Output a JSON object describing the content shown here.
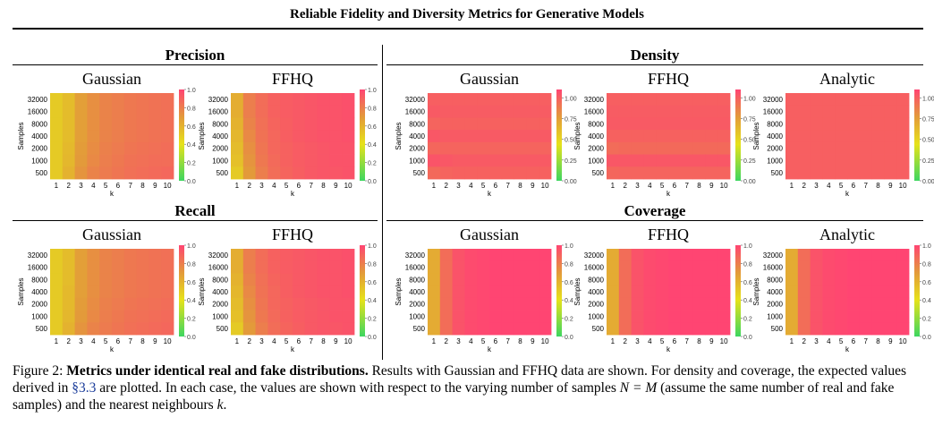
{
  "header": {
    "title": "Reliable Fidelity and Diversity Metrics for Generative Models"
  },
  "sections": {
    "precision": "Precision",
    "recall": "Recall",
    "density": "Density",
    "coverage": "Coverage"
  },
  "axes": {
    "xlabel": "k",
    "ylabel": "Samples",
    "x_ticks": [
      "1",
      "2",
      "3",
      "4",
      "5",
      "6",
      "7",
      "8",
      "9",
      "10"
    ],
    "y_ticks": [
      "32000",
      "16000",
      "8000",
      "4000",
      "2000",
      "1000",
      "500"
    ]
  },
  "colorbar_ticks_1": [
    "1.0",
    "0.8",
    "0.6",
    "0.4",
    "0.2",
    "0.0"
  ],
  "colorbar_ticks_density": [
    "1.00",
    "0.75",
    "0.50",
    "0.25",
    "0.00"
  ],
  "colors": {
    "low": "#3dd660",
    "mid": "#e6e21a",
    "orange": "#e39a3a",
    "high": "#ff4572"
  },
  "chart_data": [
    {
      "id": "precision-gaussian",
      "type": "heatmap",
      "section": "Precision",
      "title": "Gaussian",
      "xlabel": "k",
      "ylabel": "Samples",
      "vmin": 0,
      "vmax": 1,
      "x": [
        1,
        2,
        3,
        4,
        5,
        6,
        7,
        8,
        9,
        10
      ],
      "y": [
        32000,
        16000,
        8000,
        4000,
        2000,
        1000,
        500
      ],
      "values": [
        [
          0.5,
          0.56,
          0.68,
          0.74,
          0.78,
          0.8,
          0.82,
          0.83,
          0.84,
          0.85
        ],
        [
          0.5,
          0.56,
          0.68,
          0.74,
          0.78,
          0.8,
          0.82,
          0.83,
          0.84,
          0.85
        ],
        [
          0.5,
          0.56,
          0.68,
          0.74,
          0.78,
          0.8,
          0.82,
          0.83,
          0.84,
          0.85
        ],
        [
          0.5,
          0.56,
          0.68,
          0.74,
          0.78,
          0.8,
          0.82,
          0.83,
          0.84,
          0.85
        ],
        [
          0.5,
          0.57,
          0.69,
          0.75,
          0.79,
          0.81,
          0.83,
          0.84,
          0.85,
          0.86
        ],
        [
          0.5,
          0.58,
          0.7,
          0.76,
          0.8,
          0.82,
          0.84,
          0.85,
          0.86,
          0.86
        ],
        [
          0.5,
          0.6,
          0.72,
          0.78,
          0.81,
          0.83,
          0.85,
          0.86,
          0.87,
          0.88
        ]
      ]
    },
    {
      "id": "precision-ffhq",
      "type": "heatmap",
      "section": "Precision",
      "title": "FFHQ",
      "xlabel": "k",
      "ylabel": "Samples",
      "vmin": 0,
      "vmax": 1,
      "x": [
        1,
        2,
        3,
        4,
        5,
        6,
        7,
        8,
        9,
        10
      ],
      "y": [
        32000,
        16000,
        8000,
        4000,
        2000,
        1000,
        500
      ],
      "values": [
        [
          0.62,
          0.8,
          0.86,
          0.9,
          0.92,
          0.93,
          0.94,
          0.95,
          0.95,
          0.96
        ],
        [
          0.62,
          0.8,
          0.86,
          0.9,
          0.92,
          0.93,
          0.94,
          0.95,
          0.95,
          0.96
        ],
        [
          0.6,
          0.78,
          0.85,
          0.89,
          0.91,
          0.93,
          0.94,
          0.95,
          0.95,
          0.96
        ],
        [
          0.58,
          0.76,
          0.84,
          0.88,
          0.91,
          0.93,
          0.94,
          0.95,
          0.95,
          0.96
        ],
        [
          0.56,
          0.74,
          0.83,
          0.88,
          0.9,
          0.92,
          0.93,
          0.94,
          0.95,
          0.95
        ],
        [
          0.54,
          0.72,
          0.82,
          0.87,
          0.9,
          0.92,
          0.93,
          0.94,
          0.95,
          0.95
        ],
        [
          0.5,
          0.7,
          0.8,
          0.86,
          0.89,
          0.91,
          0.93,
          0.94,
          0.94,
          0.95
        ]
      ]
    },
    {
      "id": "density-gaussian",
      "type": "heatmap",
      "section": "Density",
      "title": "Gaussian",
      "xlabel": "k",
      "ylabel": "Samples",
      "vmin": 0,
      "vmax": 1.1,
      "x": [
        1,
        2,
        3,
        4,
        5,
        6,
        7,
        8,
        9,
        10
      ],
      "y": [
        32000,
        16000,
        8000,
        4000,
        2000,
        1000,
        500
      ],
      "values": [
        [
          1.0,
          1.0,
          1.0,
          1.0,
          1.0,
          1.0,
          1.0,
          1.0,
          1.0,
          1.0
        ],
        [
          1.02,
          1.01,
          1.01,
          1.01,
          1.01,
          1.01,
          1.01,
          1.01,
          1.01,
          1.01
        ],
        [
          0.98,
          0.99,
          0.99,
          0.99,
          0.99,
          0.99,
          0.99,
          0.99,
          0.99,
          0.99
        ],
        [
          1.03,
          1.02,
          1.02,
          1.02,
          1.02,
          1.02,
          1.02,
          1.02,
          1.02,
          1.02
        ],
        [
          0.97,
          0.98,
          0.98,
          0.98,
          0.98,
          0.98,
          0.98,
          0.98,
          0.98,
          0.98
        ],
        [
          1.04,
          1.03,
          1.02,
          1.02,
          1.02,
          1.02,
          1.02,
          1.02,
          1.02,
          1.02
        ],
        [
          0.96,
          0.98,
          0.99,
          0.99,
          0.99,
          0.99,
          0.99,
          0.99,
          0.99,
          0.99
        ]
      ]
    },
    {
      "id": "density-ffhq",
      "type": "heatmap",
      "section": "Density",
      "title": "FFHQ",
      "xlabel": "k",
      "ylabel": "Samples",
      "vmin": 0,
      "vmax": 1.1,
      "x": [
        1,
        2,
        3,
        4,
        5,
        6,
        7,
        8,
        9,
        10
      ],
      "y": [
        32000,
        16000,
        8000,
        4000,
        2000,
        1000,
        500
      ],
      "values": [
        [
          1.0,
          1.0,
          1.0,
          1.0,
          1.0,
          1.0,
          1.0,
          1.0,
          1.0,
          1.0
        ],
        [
          1.01,
          1.01,
          1.01,
          1.01,
          1.01,
          1.01,
          1.01,
          1.01,
          1.01,
          1.01
        ],
        [
          1.02,
          1.02,
          1.02,
          1.02,
          1.02,
          1.02,
          1.02,
          1.02,
          1.02,
          1.02
        ],
        [
          0.99,
          0.99,
          0.99,
          0.99,
          0.99,
          0.99,
          0.99,
          0.99,
          0.99,
          0.99
        ],
        [
          0.95,
          0.96,
          0.96,
          0.96,
          0.96,
          0.96,
          0.96,
          0.96,
          0.96,
          0.96
        ],
        [
          1.03,
          1.03,
          1.03,
          1.03,
          1.03,
          1.03,
          1.03,
          1.03,
          1.03,
          1.03
        ],
        [
          0.97,
          0.98,
          0.98,
          0.98,
          0.98,
          0.98,
          0.98,
          0.98,
          0.98,
          0.98
        ]
      ]
    },
    {
      "id": "density-analytic",
      "type": "heatmap",
      "section": "Density",
      "title": "Analytic",
      "xlabel": "k",
      "ylabel": "Samples",
      "vmin": 0,
      "vmax": 1.1,
      "x": [
        1,
        2,
        3,
        4,
        5,
        6,
        7,
        8,
        9,
        10
      ],
      "y": [
        32000,
        16000,
        8000,
        4000,
        2000,
        1000,
        500
      ],
      "values": [
        [
          1.0,
          1.0,
          1.0,
          1.0,
          1.0,
          1.0,
          1.0,
          1.0,
          1.0,
          1.0
        ],
        [
          1.0,
          1.0,
          1.0,
          1.0,
          1.0,
          1.0,
          1.0,
          1.0,
          1.0,
          1.0
        ],
        [
          1.0,
          1.0,
          1.0,
          1.0,
          1.0,
          1.0,
          1.0,
          1.0,
          1.0,
          1.0
        ],
        [
          1.0,
          1.0,
          1.0,
          1.0,
          1.0,
          1.0,
          1.0,
          1.0,
          1.0,
          1.0
        ],
        [
          1.0,
          1.0,
          1.0,
          1.0,
          1.0,
          1.0,
          1.0,
          1.0,
          1.0,
          1.0
        ],
        [
          1.0,
          1.0,
          1.0,
          1.0,
          1.0,
          1.0,
          1.0,
          1.0,
          1.0,
          1.0
        ],
        [
          1.0,
          1.0,
          1.0,
          1.0,
          1.0,
          1.0,
          1.0,
          1.0,
          1.0,
          1.0
        ]
      ]
    },
    {
      "id": "recall-gaussian",
      "type": "heatmap",
      "section": "Recall",
      "title": "Gaussian",
      "xlabel": "k",
      "ylabel": "Samples",
      "vmin": 0,
      "vmax": 1,
      "x": [
        1,
        2,
        3,
        4,
        5,
        6,
        7,
        8,
        9,
        10
      ],
      "y": [
        32000,
        16000,
        8000,
        4000,
        2000,
        1000,
        500
      ],
      "values": [
        [
          0.5,
          0.56,
          0.68,
          0.74,
          0.78,
          0.8,
          0.82,
          0.83,
          0.84,
          0.85
        ],
        [
          0.5,
          0.56,
          0.68,
          0.74,
          0.78,
          0.8,
          0.82,
          0.83,
          0.84,
          0.85
        ],
        [
          0.5,
          0.56,
          0.68,
          0.74,
          0.78,
          0.8,
          0.82,
          0.83,
          0.84,
          0.85
        ],
        [
          0.5,
          0.57,
          0.68,
          0.74,
          0.78,
          0.8,
          0.82,
          0.83,
          0.84,
          0.85
        ],
        [
          0.5,
          0.57,
          0.69,
          0.75,
          0.79,
          0.81,
          0.83,
          0.84,
          0.85,
          0.86
        ],
        [
          0.5,
          0.58,
          0.7,
          0.76,
          0.8,
          0.82,
          0.84,
          0.85,
          0.86,
          0.87
        ],
        [
          0.5,
          0.6,
          0.72,
          0.78,
          0.81,
          0.83,
          0.85,
          0.86,
          0.87,
          0.88
        ]
      ]
    },
    {
      "id": "recall-ffhq",
      "type": "heatmap",
      "section": "Recall",
      "title": "FFHQ",
      "xlabel": "k",
      "ylabel": "Samples",
      "vmin": 0,
      "vmax": 1,
      "x": [
        1,
        2,
        3,
        4,
        5,
        6,
        7,
        8,
        9,
        10
      ],
      "y": [
        32000,
        16000,
        8000,
        4000,
        2000,
        1000,
        500
      ],
      "values": [
        [
          0.62,
          0.8,
          0.86,
          0.9,
          0.92,
          0.93,
          0.94,
          0.95,
          0.95,
          0.96
        ],
        [
          0.62,
          0.8,
          0.86,
          0.9,
          0.92,
          0.93,
          0.94,
          0.95,
          0.95,
          0.96
        ],
        [
          0.6,
          0.78,
          0.85,
          0.89,
          0.91,
          0.93,
          0.94,
          0.95,
          0.95,
          0.96
        ],
        [
          0.58,
          0.76,
          0.84,
          0.88,
          0.91,
          0.93,
          0.94,
          0.95,
          0.95,
          0.96
        ],
        [
          0.56,
          0.74,
          0.83,
          0.88,
          0.9,
          0.92,
          0.93,
          0.94,
          0.95,
          0.95
        ],
        [
          0.54,
          0.72,
          0.82,
          0.87,
          0.9,
          0.92,
          0.93,
          0.94,
          0.95,
          0.95
        ],
        [
          0.5,
          0.7,
          0.8,
          0.86,
          0.89,
          0.91,
          0.93,
          0.94,
          0.94,
          0.95
        ]
      ]
    },
    {
      "id": "coverage-gaussian",
      "type": "heatmap",
      "section": "Coverage",
      "title": "Gaussian",
      "xlabel": "k",
      "ylabel": "Samples",
      "vmin": 0,
      "vmax": 1,
      "x": [
        1,
        2,
        3,
        4,
        5,
        6,
        7,
        8,
        9,
        10
      ],
      "y": [
        32000,
        16000,
        8000,
        4000,
        2000,
        1000,
        500
      ],
      "values": [
        [
          0.63,
          0.86,
          0.95,
          0.98,
          0.99,
          1.0,
          1.0,
          1.0,
          1.0,
          1.0
        ],
        [
          0.63,
          0.86,
          0.95,
          0.98,
          0.99,
          1.0,
          1.0,
          1.0,
          1.0,
          1.0
        ],
        [
          0.63,
          0.86,
          0.95,
          0.98,
          0.99,
          1.0,
          1.0,
          1.0,
          1.0,
          1.0
        ],
        [
          0.63,
          0.86,
          0.95,
          0.98,
          0.99,
          1.0,
          1.0,
          1.0,
          1.0,
          1.0
        ],
        [
          0.63,
          0.86,
          0.95,
          0.98,
          0.99,
          1.0,
          1.0,
          1.0,
          1.0,
          1.0
        ],
        [
          0.63,
          0.86,
          0.95,
          0.98,
          0.99,
          1.0,
          1.0,
          1.0,
          1.0,
          1.0
        ],
        [
          0.63,
          0.86,
          0.95,
          0.98,
          0.99,
          1.0,
          1.0,
          1.0,
          1.0,
          1.0
        ]
      ]
    },
    {
      "id": "coverage-ffhq",
      "type": "heatmap",
      "section": "Coverage",
      "title": "FFHQ",
      "xlabel": "k",
      "ylabel": "Samples",
      "vmin": 0,
      "vmax": 1,
      "x": [
        1,
        2,
        3,
        4,
        5,
        6,
        7,
        8,
        9,
        10
      ],
      "y": [
        32000,
        16000,
        8000,
        4000,
        2000,
        1000,
        500
      ],
      "values": [
        [
          0.63,
          0.86,
          0.95,
          0.98,
          0.99,
          1.0,
          1.0,
          1.0,
          1.0,
          1.0
        ],
        [
          0.63,
          0.86,
          0.95,
          0.98,
          0.99,
          1.0,
          1.0,
          1.0,
          1.0,
          1.0
        ],
        [
          0.63,
          0.86,
          0.95,
          0.98,
          0.99,
          1.0,
          1.0,
          1.0,
          1.0,
          1.0
        ],
        [
          0.63,
          0.86,
          0.95,
          0.98,
          0.99,
          1.0,
          1.0,
          1.0,
          1.0,
          1.0
        ],
        [
          0.63,
          0.86,
          0.95,
          0.98,
          0.99,
          1.0,
          1.0,
          1.0,
          1.0,
          1.0
        ],
        [
          0.63,
          0.86,
          0.95,
          0.98,
          0.99,
          1.0,
          1.0,
          1.0,
          1.0,
          1.0
        ],
        [
          0.63,
          0.86,
          0.95,
          0.98,
          0.99,
          1.0,
          1.0,
          1.0,
          1.0,
          1.0
        ]
      ]
    },
    {
      "id": "coverage-analytic",
      "type": "heatmap",
      "section": "Coverage",
      "title": "Analytic",
      "xlabel": "k",
      "ylabel": "Samples",
      "vmin": 0,
      "vmax": 1,
      "x": [
        1,
        2,
        3,
        4,
        5,
        6,
        7,
        8,
        9,
        10
      ],
      "y": [
        32000,
        16000,
        8000,
        4000,
        2000,
        1000,
        500
      ],
      "values": [
        [
          0.63,
          0.86,
          0.95,
          0.98,
          0.99,
          1.0,
          1.0,
          1.0,
          1.0,
          1.0
        ],
        [
          0.63,
          0.86,
          0.95,
          0.98,
          0.99,
          1.0,
          1.0,
          1.0,
          1.0,
          1.0
        ],
        [
          0.63,
          0.86,
          0.95,
          0.98,
          0.99,
          1.0,
          1.0,
          1.0,
          1.0,
          1.0
        ],
        [
          0.63,
          0.86,
          0.95,
          0.98,
          0.99,
          1.0,
          1.0,
          1.0,
          1.0,
          1.0
        ],
        [
          0.63,
          0.86,
          0.95,
          0.98,
          0.99,
          1.0,
          1.0,
          1.0,
          1.0,
          1.0
        ],
        [
          0.63,
          0.86,
          0.95,
          0.98,
          0.99,
          1.0,
          1.0,
          1.0,
          1.0,
          1.0
        ],
        [
          0.63,
          0.86,
          0.95,
          0.98,
          0.99,
          1.0,
          1.0,
          1.0,
          1.0,
          1.0
        ]
      ]
    }
  ],
  "caption": {
    "label": "Figure 2:",
    "bold": "Metrics under identical real and fake distributions.",
    "text1": "Results with Gaussian and FFHQ data are shown. For density and coverage, the expected values derived in",
    "link": "§3.3",
    "text2": "are plotted. In each case, the values are shown with respect to the varying number of samples",
    "math1": "N = M",
    "text3": "(assume the same number of real and fake samples) and the nearest neighbours",
    "math2": "k",
    "text4": "."
  }
}
